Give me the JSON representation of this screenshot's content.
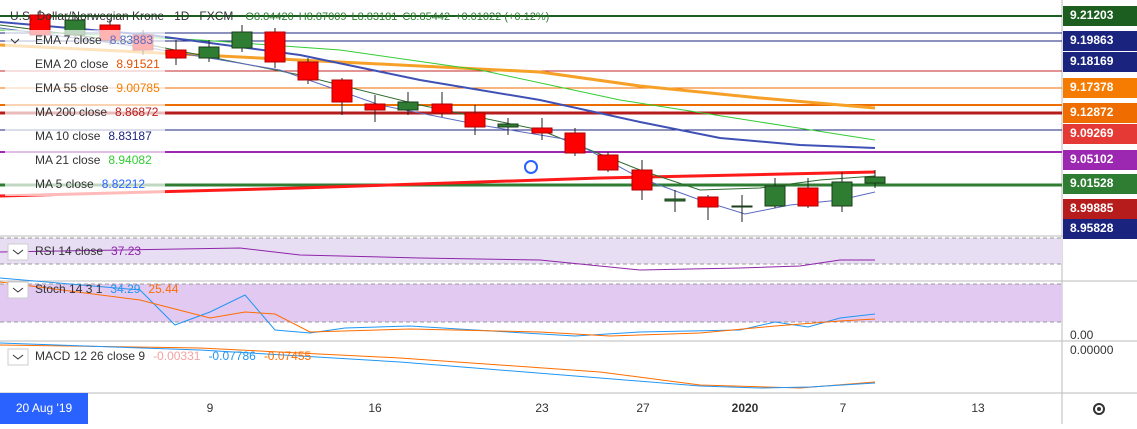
{
  "header": {
    "symbol": "U.S. Dollar/Norwegian Krone",
    "interval": "1D",
    "exchange": "FXCM",
    "open": "O8.84420",
    "high": "H8.87009",
    "low": "L8.83181",
    "close": "C8.85442",
    "change": "+0.01022 (+0.12%)"
  },
  "indicators": [
    {
      "name": "EMA 7 close",
      "value": "8.83883"
    },
    {
      "name": "EMA 20 close",
      "value": "8.91521"
    },
    {
      "name": "EMA 55 close",
      "value": "9.00785"
    },
    {
      "name": "MA 200 close",
      "value": "8.86872"
    },
    {
      "name": "MA 10 close",
      "value": "8.83187"
    },
    {
      "name": "MA 21 close",
      "value": "8.94082"
    },
    {
      "name": "MA 5 close",
      "value": "8.82212"
    }
  ],
  "price_axis": [
    "9.21203",
    "9.19863",
    "9.18169",
    "9.17378",
    "9.12872",
    "9.09269",
    "9.05102",
    "9.01528",
    "8.99885",
    "8.95828"
  ],
  "panes": {
    "rsi": {
      "name": "RSI 14 close",
      "values": [
        "37.23"
      ]
    },
    "stoch": {
      "name": "Stoch 14 3 1",
      "values": [
        "34.29",
        "25.44"
      ],
      "axis": "0.00"
    },
    "macd": {
      "name": "MACD 12 26 close 9",
      "values": [
        "-0.00331",
        "-0.07786",
        "-0.07455"
      ],
      "axis": "0.00000"
    }
  },
  "time_axis": [
    "9",
    "16",
    "23",
    "27",
    "2020",
    "7",
    "13"
  ],
  "date_badge": "20 Aug '19"
}
